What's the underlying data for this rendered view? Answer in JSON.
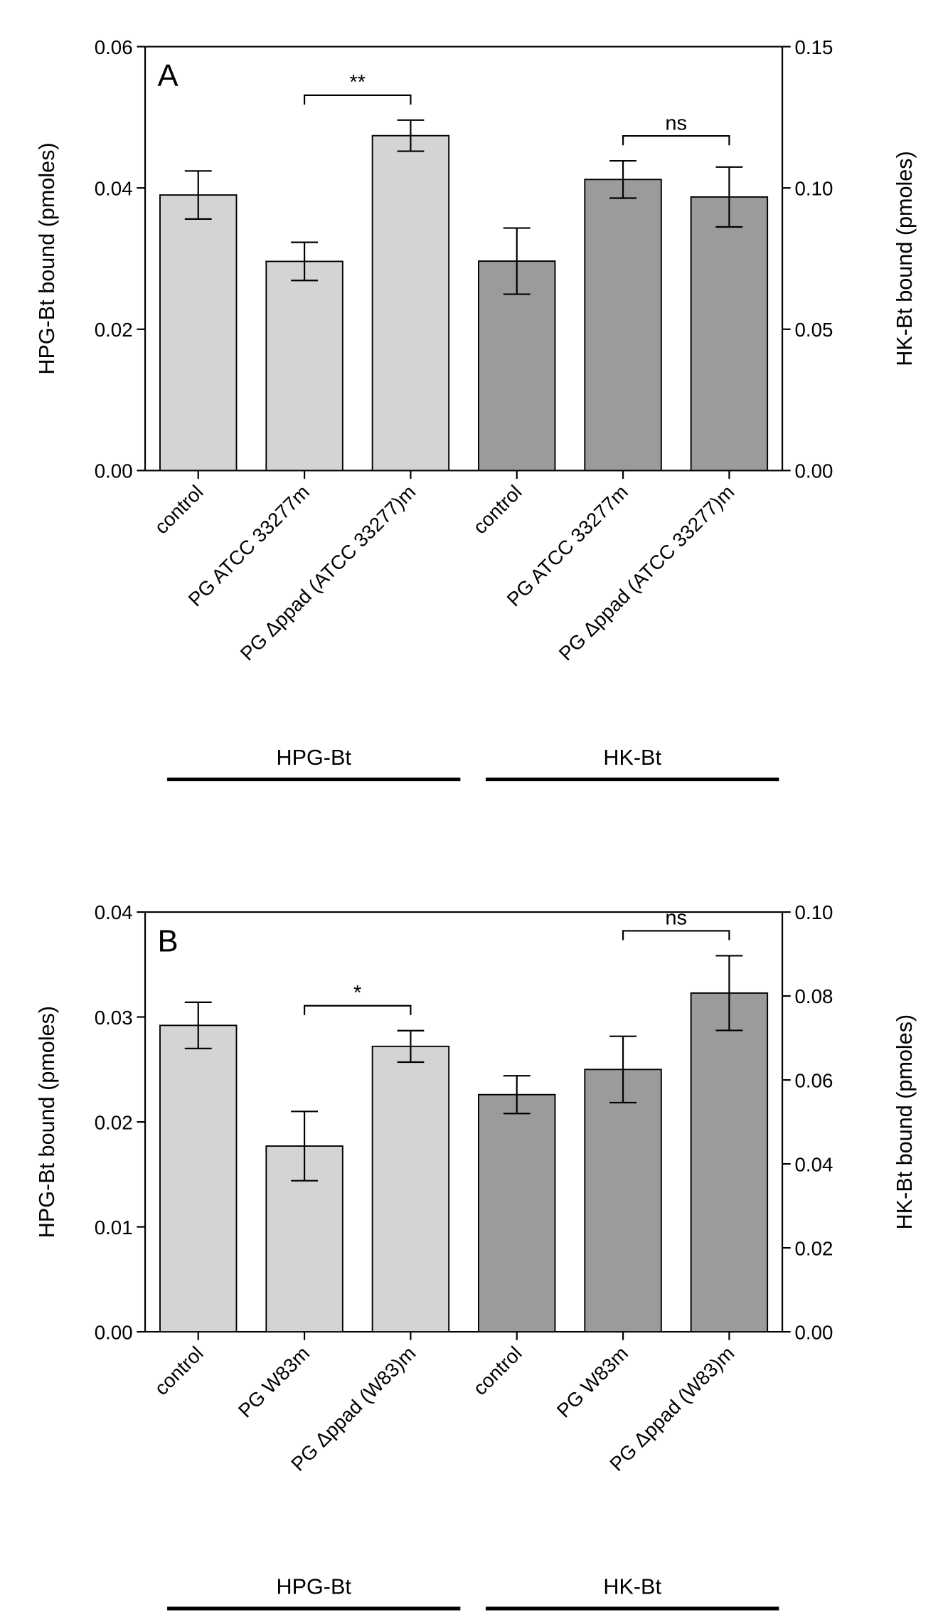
{
  "chart_data": [
    {
      "type": "bar",
      "panel": "A",
      "categories": [
        "control",
        "PG ATCC 33277m",
        "PG  Δppad (ATCC 33277)m",
        "control",
        "PG ATCC 33277m",
        "PG Δppad (ATCC 33277)m"
      ],
      "series": [
        {
          "name": "HPG-Bt",
          "color": "#d4d4d4",
          "axis": "y",
          "values": [
            0.039,
            0.0296,
            0.0474,
            null,
            null,
            null
          ],
          "errors": [
            0.0034,
            0.0027,
            0.0022,
            null,
            null,
            null
          ]
        },
        {
          "name": "HK-Bt",
          "color": "#9b9b9b",
          "axis": "y2",
          "values": [
            null,
            null,
            null,
            0.0741,
            0.103,
            0.0968
          ],
          "errors": [
            null,
            null,
            null,
            0.0117,
            0.0066,
            0.0106
          ]
        }
      ],
      "ylabel": "HPG-Bt bound (pmoles)",
      "y2label": "HK-Bt bound (pmoles)",
      "ylim": [
        0,
        0.06
      ],
      "yticks": [
        {
          "value": 0,
          "label": "0.00"
        },
        {
          "value": 0.02,
          "label": "0.02"
        },
        {
          "value": 0.04,
          "label": "0.04"
        },
        {
          "value": 0.06,
          "label": "0.06"
        }
      ],
      "y2lim": [
        0,
        0.15
      ],
      "y2ticks": [
        {
          "value": 0,
          "label": "0.00"
        },
        {
          "value": 0.05,
          "label": "0.05"
        },
        {
          "value": 0.1,
          "label": "0.10"
        },
        {
          "value": 0.15,
          "label": "0.15"
        }
      ],
      "annotations": [
        {
          "text": "**",
          "between": [
            1,
            2
          ]
        },
        {
          "text": "ns",
          "between": [
            4,
            5
          ]
        }
      ]
    },
    {
      "type": "bar",
      "panel": "B",
      "categories": [
        "control",
        "PG W83m",
        "PG Δppad (W83)m",
        "control",
        "PG W83m",
        "PG Δppad (W83)m"
      ],
      "series": [
        {
          "name": "HPG-Bt",
          "color": "#d4d4d4",
          "axis": "y",
          "values": [
            0.0292,
            0.0177,
            0.0272,
            null,
            null,
            null
          ],
          "errors": [
            0.0022,
            0.0033,
            0.0015,
            null,
            null,
            null
          ]
        },
        {
          "name": "HK-Bt",
          "color": "#9b9b9b",
          "axis": "y2",
          "values": [
            null,
            null,
            null,
            0.0565,
            0.0625,
            0.0807
          ],
          "errors": [
            null,
            null,
            null,
            0.0045,
            0.0079,
            0.0089
          ]
        }
      ],
      "ylabel": "HPG-Bt bound  (pmoles)",
      "y2label": "HK-Bt bound (pmoles)",
      "ylim": [
        0,
        0.04
      ],
      "yticks": [
        {
          "value": 0,
          "label": "0.00"
        },
        {
          "value": 0.01,
          "label": "0.01"
        },
        {
          "value": 0.02,
          "label": "0.02"
        },
        {
          "value": 0.03,
          "label": "0.03"
        },
        {
          "value": 0.04,
          "label": "0.04"
        }
      ],
      "y2lim": [
        0,
        0.1
      ],
      "y2ticks": [
        {
          "value": 0,
          "label": "0.00"
        },
        {
          "value": 0.02,
          "label": "0.02"
        },
        {
          "value": 0.04,
          "label": "0.04"
        },
        {
          "value": 0.06,
          "label": "0.06"
        },
        {
          "value": 0.08,
          "label": "0.08"
        },
        {
          "value": 0.1,
          "label": "0.10"
        }
      ],
      "annotations": [
        {
          "text": "*",
          "between": [
            1,
            2
          ]
        },
        {
          "text": "ns",
          "between": [
            4,
            5
          ]
        }
      ]
    }
  ]
}
